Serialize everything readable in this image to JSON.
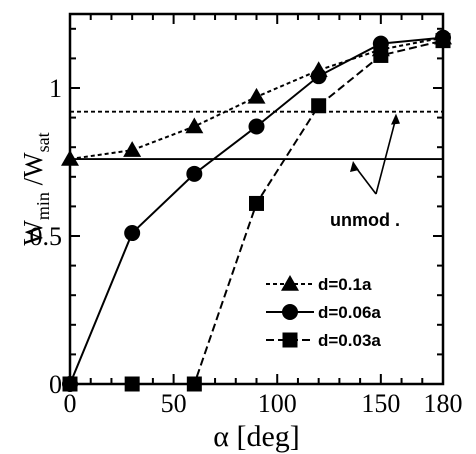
{
  "chart_data": {
    "type": "line",
    "xlabel": "α [deg]",
    "ylabel": {
      "base1": "W",
      "sub1": "min",
      "sep": " /",
      "base2": "W",
      "sub2": "sat"
    },
    "xlim": [
      0,
      180
    ],
    "ylim": [
      0,
      1.25
    ],
    "xticks": [
      0,
      50,
      100,
      150,
      180
    ],
    "yticks": [
      0,
      0.5,
      1
    ],
    "xtick_labels": [
      "0",
      "50",
      "100",
      "150",
      "180"
    ],
    "ytick_labels": [
      "0",
      "0.5",
      "1"
    ],
    "series": [
      {
        "name": "d=0.1a",
        "marker": "triangle",
        "dash": "short",
        "x": [
          0,
          30,
          60,
          90,
          120,
          150,
          180
        ],
        "y": [
          0.76,
          0.79,
          0.87,
          0.97,
          1.06,
          1.13,
          1.17
        ]
      },
      {
        "name": "d=0.06a",
        "marker": "circle",
        "dash": "solid",
        "x": [
          0,
          30,
          60,
          90,
          120,
          150,
          180
        ],
        "y": [
          0.0,
          0.51,
          0.71,
          0.87,
          1.04,
          1.15,
          1.17
        ]
      },
      {
        "name": "d=0.03a",
        "marker": "square",
        "dash": "long",
        "x": [
          0,
          30,
          60,
          90,
          120,
          150,
          180
        ],
        "y": [
          0.0,
          0.0,
          0.0,
          0.61,
          0.94,
          1.11,
          1.16
        ]
      }
    ],
    "reference_lines": [
      {
        "y": 0.92,
        "dash": "short"
      },
      {
        "y": 0.76,
        "dash": "solid"
      }
    ],
    "annotation": {
      "text": "unmod ."
    },
    "legend_position": "lower-right",
    "grid": false
  }
}
